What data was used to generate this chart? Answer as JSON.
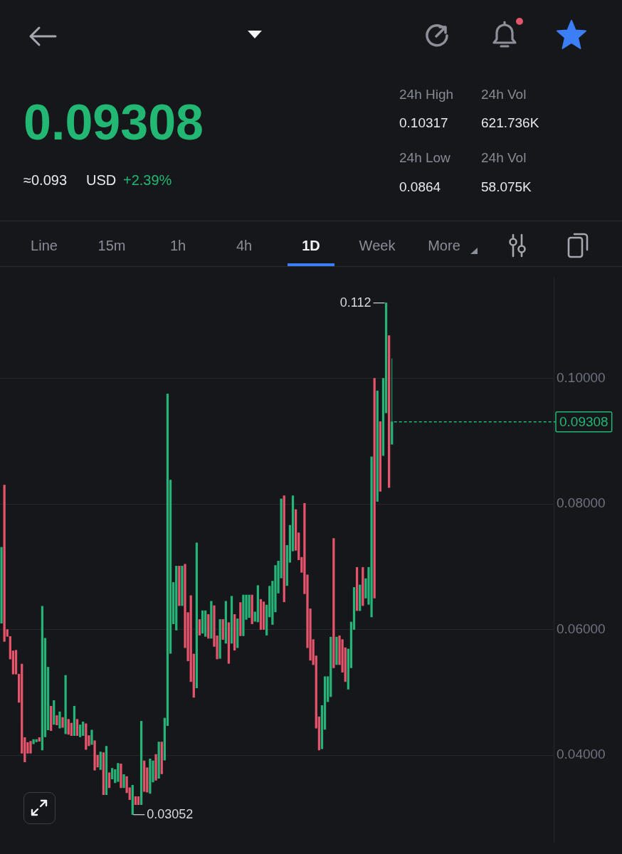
{
  "chart_data": [
    {
      "type": "other",
      "annotations": [
        "0.09308",
        "≈0.093",
        "USD",
        "+2.39%",
        "24h High",
        "24h Vol",
        "0.10317",
        "621.736K",
        "24h Low",
        "24h Vol",
        "0.0864",
        "58.075K",
        "Line",
        "15m",
        "1h",
        "4h",
        "1D",
        "Week",
        "More"
      ]
    },
    {
      "type": "candlestick",
      "categories": [
        null,
        null,
        null,
        null,
        null,
        null,
        null,
        null,
        null,
        null,
        null,
        null,
        null,
        null,
        null,
        null,
        null,
        null,
        null,
        null,
        null,
        null,
        null,
        null,
        null,
        null,
        null,
        null,
        null,
        null,
        null,
        null,
        null,
        null,
        null,
        null,
        null,
        null,
        null,
        null,
        null,
        null,
        null,
        null,
        null,
        null,
        null,
        null,
        null,
        null,
        null,
        null,
        null,
        null,
        null,
        null,
        null,
        null,
        null,
        null,
        null,
        null,
        null,
        null,
        null,
        null,
        null,
        null,
        null,
        null,
        null,
        null,
        null,
        null,
        null,
        null,
        null,
        null,
        null,
        null,
        null,
        null,
        null,
        null,
        null,
        null,
        null,
        null,
        null,
        null,
        null,
        null,
        null,
        null,
        null,
        null,
        null,
        null,
        null,
        null,
        null,
        null,
        null,
        null,
        null,
        null,
        null,
        null,
        null,
        null,
        null,
        null,
        null,
        null,
        null,
        null,
        null,
        null,
        null,
        null,
        null,
        null,
        null,
        null,
        null,
        null,
        null,
        null,
        null,
        null,
        null,
        null,
        null,
        null,
        null,
        null,
        null,
        null,
        null,
        null,
        null,
        null,
        null,
        null,
        null,
        null,
        null,
        null,
        null,
        null,
        null,
        null,
        null,
        null,
        null,
        null,
        null,
        null,
        null,
        null,
        null,
        null,
        null,
        null,
        null,
        null,
        null,
        null,
        null,
        null,
        null,
        null,
        null,
        null,
        null,
        null,
        null,
        null,
        null,
        null,
        null,
        null,
        null,
        null,
        null,
        null,
        null,
        null,
        null,
        null
      ],
      "ohlc": [
        [
          0.061,
          0.0731,
          0.061,
          0.0731
        ],
        [
          0.083,
          0.083,
          0.0581,
          0.0581
        ],
        [
          0.06,
          0.06,
          0.0589,
          0.0589
        ],
        [
          0.0589,
          0.0589,
          0.0553,
          0.0553
        ],
        [
          0.0566,
          0.0566,
          0.0529,
          0.0529
        ],
        [
          0.0567,
          0.0567,
          0.0529,
          0.0529
        ],
        [
          0.0529,
          0.0529,
          0.0484,
          0.0484
        ],
        [
          0.0545,
          0.0545,
          0.0403,
          0.0403
        ],
        [
          0.0428,
          0.0428,
          0.0389,
          0.0389
        ],
        [
          0.042,
          0.042,
          0.0403,
          0.0403
        ],
        [
          0.0422,
          0.0422,
          0.0403,
          0.0403
        ],
        [
          0.0418,
          0.0425,
          0.0418,
          0.0425
        ],
        [
          0.0421,
          0.0425,
          0.0421,
          0.0425
        ],
        [
          0.0428,
          0.0428,
          0.0422,
          0.0422
        ],
        [
          0.0408,
          0.0637,
          0.0408,
          0.0637
        ],
        [
          0.0429,
          0.0586,
          0.0429,
          0.0586
        ],
        [
          0.044,
          0.054,
          0.044,
          0.054
        ],
        [
          0.0478,
          0.0478,
          0.0439,
          0.0439
        ],
        [
          0.0449,
          0.0487,
          0.0449,
          0.0487
        ],
        [
          0.0463,
          0.0463,
          0.0448,
          0.0448
        ],
        [
          0.0443,
          0.0469,
          0.0443,
          0.0469
        ],
        [
          0.046,
          0.046,
          0.0444,
          0.0444
        ],
        [
          0.0434,
          0.0527,
          0.0434,
          0.0527
        ],
        [
          0.0457,
          0.0457,
          0.0433,
          0.0433
        ],
        [
          0.0451,
          0.0451,
          0.0431,
          0.0431
        ],
        [
          0.0431,
          0.0478,
          0.0431,
          0.0478
        ],
        [
          0.0457,
          0.0457,
          0.0431,
          0.0431
        ],
        [
          0.0429,
          0.0448,
          0.0429,
          0.0448
        ],
        [
          0.0431,
          0.0453,
          0.0431,
          0.0453
        ],
        [
          0.045,
          0.045,
          0.0409,
          0.0409
        ],
        [
          0.0431,
          0.0431,
          0.0415,
          0.0415
        ],
        [
          0.0417,
          0.044,
          0.0417,
          0.044
        ],
        [
          0.0423,
          0.0423,
          0.0376,
          0.0376
        ],
        [
          0.04,
          0.04,
          0.0381,
          0.0381
        ],
        [
          0.0377,
          0.0405,
          0.0377,
          0.0405
        ],
        [
          0.0404,
          0.0404,
          0.0337,
          0.0337
        ],
        [
          0.0337,
          0.0414,
          0.0337,
          0.0414
        ],
        [
          0.0372,
          0.0372,
          0.0348,
          0.0348
        ],
        [
          0.0362,
          0.0379,
          0.0362,
          0.0379
        ],
        [
          0.0356,
          0.0377,
          0.0356,
          0.0377
        ],
        [
          0.0358,
          0.0387,
          0.0358,
          0.0387
        ],
        [
          0.0386,
          0.0386,
          0.0348,
          0.0348
        ],
        [
          0.0348,
          0.0369,
          0.0348,
          0.0369
        ],
        [
          0.0366,
          0.0366,
          0.034,
          0.034
        ],
        [
          0.0348,
          0.0348,
          0.0329,
          0.0329
        ],
        [
          0.03052,
          0.0352,
          0.03052,
          0.0352
        ],
        [
          0.0334,
          0.0334,
          0.0321,
          0.0321
        ],
        [
          0.0334,
          0.0334,
          0.0321,
          0.0321
        ],
        [
          0.0321,
          0.0454,
          0.0321,
          0.0454
        ],
        [
          0.0391,
          0.0391,
          0.0342,
          0.0342
        ],
        [
          0.038,
          0.038,
          0.0341,
          0.0341
        ],
        [
          0.0339,
          0.0394,
          0.0339,
          0.0394
        ],
        [
          0.0357,
          0.0391,
          0.0357,
          0.0391
        ],
        [
          0.0401,
          0.0401,
          0.036,
          0.036
        ],
        [
          0.0363,
          0.0421,
          0.0363,
          0.0421
        ],
        [
          0.0421,
          0.0421,
          0.037,
          0.037
        ],
        [
          0.0392,
          0.0459,
          0.0392,
          0.0459
        ],
        [
          0.0447,
          0.0975,
          0.0447,
          0.0975
        ],
        [
          0.0562,
          0.0838,
          0.0562,
          0.0838
        ],
        [
          0.0609,
          0.0675,
          0.0609,
          0.0675
        ],
        [
          0.0599,
          0.0701,
          0.0599,
          0.0701
        ],
        [
          0.0701,
          0.0701,
          0.0638,
          0.0638
        ],
        [
          0.0638,
          0.0701,
          0.0638,
          0.0701
        ],
        [
          0.0704,
          0.0704,
          0.0571,
          0.0571
        ],
        [
          0.0627,
          0.0627,
          0.055,
          0.055
        ],
        [
          0.0654,
          0.0654,
          0.0517,
          0.0517
        ],
        [
          0.0561,
          0.0561,
          0.0492,
          0.0492
        ],
        [
          0.0507,
          0.0738,
          0.0507,
          0.0738
        ],
        [
          0.0616,
          0.0616,
          0.0591,
          0.0591
        ],
        [
          0.0594,
          0.063,
          0.0594,
          0.063
        ],
        [
          0.0589,
          0.063,
          0.0589,
          0.063
        ],
        [
          0.0624,
          0.0624,
          0.0586,
          0.0586
        ],
        [
          0.0586,
          0.0645,
          0.0586,
          0.0645
        ],
        [
          0.0638,
          0.0638,
          0.0573,
          0.0573
        ],
        [
          0.059,
          0.059,
          0.0553,
          0.0553
        ],
        [
          0.0554,
          0.0616,
          0.0554,
          0.0616
        ],
        [
          0.0616,
          0.0616,
          0.0584,
          0.0584
        ],
        [
          0.0578,
          0.0645,
          0.0578,
          0.0645
        ],
        [
          0.0611,
          0.0611,
          0.0546,
          0.0546
        ],
        [
          0.0578,
          0.0653,
          0.0578,
          0.0653
        ],
        [
          0.0624,
          0.0624,
          0.0567,
          0.0567
        ],
        [
          0.0571,
          0.0617,
          0.0571,
          0.0617
        ],
        [
          0.0643,
          0.0643,
          0.059,
          0.059
        ],
        [
          0.059,
          0.0655,
          0.059,
          0.0655
        ],
        [
          0.0616,
          0.0655,
          0.0616,
          0.0655
        ],
        [
          0.0619,
          0.0655,
          0.0619,
          0.0655
        ],
        [
          0.0655,
          0.0655,
          0.0609,
          0.0609
        ],
        [
          0.0613,
          0.0628,
          0.0613,
          0.0628
        ],
        [
          0.0612,
          0.067,
          0.0612,
          0.067
        ],
        [
          0.0648,
          0.0648,
          0.06,
          0.06
        ],
        [
          0.0644,
          0.0644,
          0.06,
          0.06
        ],
        [
          0.0591,
          0.0639,
          0.0591,
          0.0639
        ],
        [
          0.062,
          0.0669,
          0.062,
          0.0669
        ],
        [
          0.0608,
          0.0677,
          0.0608,
          0.0677
        ],
        [
          0.0628,
          0.0702,
          0.0628,
          0.0702
        ],
        [
          0.0658,
          0.0709,
          0.0658,
          0.0709
        ],
        [
          0.0682,
          0.0808,
          0.0682,
          0.0808
        ],
        [
          0.0813,
          0.0813,
          0.0644,
          0.0644
        ],
        [
          0.067,
          0.0734,
          0.067,
          0.0734
        ],
        [
          0.0707,
          0.0766,
          0.0707,
          0.0766
        ],
        [
          0.0725,
          0.0813,
          0.0725,
          0.0813
        ],
        [
          0.0791,
          0.0791,
          0.0726,
          0.0726
        ],
        [
          0.0754,
          0.0754,
          0.0711,
          0.0711
        ],
        [
          0.0715,
          0.0715,
          0.0691,
          0.0691
        ],
        [
          0.0801,
          0.0801,
          0.0657,
          0.0657
        ],
        [
          0.0687,
          0.0687,
          0.0571,
          0.0571
        ],
        [
          0.0633,
          0.0633,
          0.0551,
          0.0551
        ],
        [
          0.0584,
          0.0584,
          0.0544,
          0.0544
        ],
        [
          0.0558,
          0.0558,
          0.0443,
          0.0443
        ],
        [
          0.0461,
          0.0461,
          0.0408,
          0.0408
        ],
        [
          0.041,
          0.0479,
          0.041,
          0.0479
        ],
        [
          0.0441,
          0.0525,
          0.0441,
          0.0525
        ],
        [
          0.0485,
          0.0525,
          0.0485,
          0.0525
        ],
        [
          0.0493,
          0.0588,
          0.0493,
          0.0588
        ],
        [
          0.0745,
          0.0745,
          0.0539,
          0.0539
        ],
        [
          0.0544,
          0.0588,
          0.0544,
          0.0588
        ],
        [
          0.059,
          0.059,
          0.0544,
          0.0544
        ],
        [
          0.0584,
          0.0584,
          0.0532,
          0.0532
        ],
        [
          0.0571,
          0.0571,
          0.0517,
          0.0517
        ],
        [
          0.0505,
          0.0569,
          0.0505,
          0.0569
        ],
        [
          0.0539,
          0.0612,
          0.0539,
          0.0612
        ],
        [
          0.06,
          0.0667,
          0.06,
          0.0667
        ],
        [
          0.0699,
          0.0699,
          0.063,
          0.063
        ],
        [
          0.063,
          0.0671,
          0.063,
          0.0671
        ],
        [
          0.0699,
          0.0699,
          0.0638,
          0.0638
        ],
        [
          0.065,
          0.0681,
          0.065,
          0.0681
        ],
        [
          0.064,
          0.0699,
          0.064,
          0.0699
        ],
        [
          0.062,
          0.0875,
          0.062,
          0.0875
        ],
        [
          0.1,
          0.1,
          0.065,
          0.065
        ],
        [
          0.0804,
          0.098,
          0.0804,
          0.098
        ],
        [
          0.0931,
          0.0931,
          0.082,
          0.082
        ],
        [
          0.0877,
          0.1,
          0.0877,
          0.1
        ],
        [
          0.0945,
          0.112,
          0.0945,
          0.112
        ],
        [
          0.1068,
          0.1068,
          0.0826,
          0.0826
        ],
        [
          0.0895,
          0.10317,
          0.0895,
          0.09308
        ],
        null,
        null,
        null,
        null,
        null,
        null,
        null,
        null,
        null,
        null,
        null,
        null,
        null,
        null,
        null,
        null,
        null,
        null,
        null,
        null,
        null,
        null,
        null,
        null,
        null,
        null,
        null,
        null,
        null,
        null,
        null,
        null,
        null,
        null,
        null,
        null,
        null,
        null,
        null,
        null,
        null,
        null,
        null,
        null,
        null,
        null,
        null,
        null,
        null,
        null,
        null,
        null,
        null,
        null,
        null
      ],
      "ylim": [
        0.026,
        0.116
      ],
      "yticks": [
        {
          "value": 0.04,
          "label": "0.04000"
        },
        {
          "value": 0.06,
          "label": "0.06000"
        },
        {
          "value": 0.08,
          "label": "0.08000"
        },
        {
          "value": 0.1,
          "label": "0.10000"
        }
      ],
      "grid": "y",
      "ref_lines": [
        {
          "axis": "y",
          "value": 0.09308,
          "label": "0.09308",
          "color": "#22b772",
          "line_style": "dashed"
        }
      ],
      "annotations": [
        "0.112",
        "0.03052"
      ]
    }
  ]
}
